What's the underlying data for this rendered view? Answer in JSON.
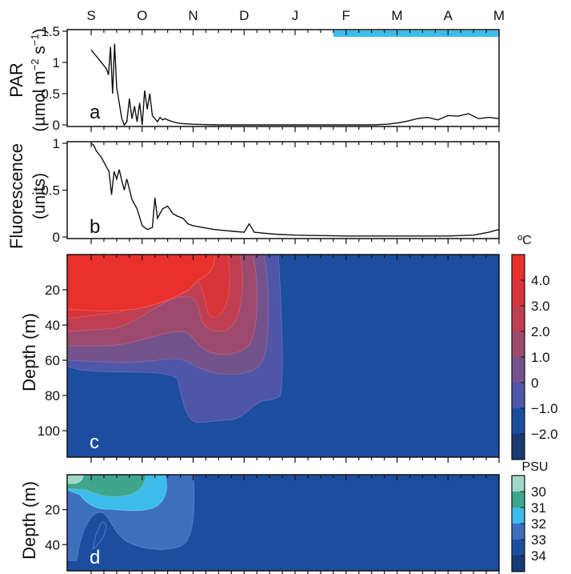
{
  "months": [
    "S",
    "O",
    "N",
    "D",
    "J",
    "F",
    "M",
    "A",
    "M"
  ],
  "panels": {
    "a": {
      "letter": "a",
      "ylabel_line1": "PAR",
      "ylabel_line2": "(µmol m",
      "ylabel_sup1": "−2",
      "ylabel_mid": " s",
      "ylabel_sup2": "−1",
      "ylabel_end": ")",
      "ticks": [
        "0",
        "0.5",
        "1",
        "1.5"
      ],
      "ylim": [
        0,
        1.5
      ]
    },
    "b": {
      "letter": "b",
      "ylabel_line1": "Fluorescence",
      "ylabel_line2": "(units)",
      "ticks": [
        "0",
        "0.5",
        "1"
      ],
      "ylim": [
        0,
        1
      ]
    },
    "c": {
      "letter": "c",
      "ylabel": "Depth (m)",
      "ticks": [
        "20",
        "40",
        "60",
        "80",
        "100"
      ],
      "colorbar_unit": "ºC",
      "colorbar_labels": [
        "4.0",
        "3.0",
        "2.0",
        "1.0",
        "0",
        "−1.0",
        "−2.0"
      ],
      "colorbar_colors": [
        "#e8302c",
        "#d8353a",
        "#c03f52",
        "#9c4a6e",
        "#74528c",
        "#4e56a8",
        "#1c4ea0",
        "#1c3a72"
      ]
    },
    "d": {
      "letter": "d",
      "ylabel": "Depth (m)",
      "ticks": [
        "20",
        "40"
      ],
      "colorbar_unit": "PSU",
      "colorbar_labels": [
        "30",
        "31",
        "32",
        "33",
        "34"
      ],
      "colorbar_colors": [
        "#9ed8c8",
        "#3fa58e",
        "#3cbcea",
        "#3e6fbf",
        "#1c4ea0",
        "#173a78"
      ]
    }
  },
  "chart_data": [
    {
      "type": "line",
      "panel": "a",
      "ylabel": "PAR (µmol m−2 s−1)",
      "x_axis": "month (S–M)",
      "ylim": [
        0,
        1.5
      ],
      "ice_bar_x": [
        4.75,
        8.0
      ],
      "x": [
        0.0,
        0.05,
        0.1,
        0.15,
        0.2,
        0.25,
        0.3,
        0.34,
        0.38,
        0.42,
        0.46,
        0.5,
        0.55,
        0.6,
        0.65,
        0.7,
        0.75,
        0.8,
        0.85,
        0.9,
        0.95,
        1.0,
        1.05,
        1.1,
        1.15,
        1.2,
        1.25,
        1.3,
        1.35,
        1.4,
        1.45,
        1.5,
        1.6,
        1.7,
        1.8,
        2.0,
        2.5,
        3.0,
        4.0,
        5.0,
        5.5,
        5.8,
        6.0,
        6.2,
        6.4,
        6.6,
        6.8,
        7.0,
        7.2,
        7.4,
        7.6,
        7.8,
        8.0
      ],
      "y": [
        1.2,
        1.15,
        1.1,
        1.05,
        1.0,
        0.95,
        0.9,
        0.8,
        1.25,
        0.5,
        1.3,
        0.6,
        0.35,
        0.1,
        0.0,
        0.05,
        0.42,
        0.1,
        0.3,
        0.05,
        0.35,
        0.0,
        0.55,
        0.25,
        0.5,
        0.15,
        0.1,
        0.05,
        0.12,
        0.08,
        0.1,
        0.08,
        0.05,
        0.03,
        0.02,
        0.01,
        0.0,
        0.0,
        0.0,
        0.0,
        0.0,
        0.01,
        0.03,
        0.06,
        0.1,
        0.12,
        0.08,
        0.15,
        0.14,
        0.18,
        0.1,
        0.12,
        0.1
      ]
    },
    {
      "type": "line",
      "panel": "b",
      "ylabel": "Fluorescence (units)",
      "x_axis": "month (S–M)",
      "ylim": [
        0,
        1
      ],
      "x": [
        0.0,
        0.05,
        0.1,
        0.2,
        0.3,
        0.35,
        0.4,
        0.45,
        0.5,
        0.55,
        0.6,
        0.65,
        0.7,
        0.8,
        0.9,
        1.0,
        1.1,
        1.2,
        1.25,
        1.3,
        1.4,
        1.5,
        1.6,
        1.7,
        1.8,
        1.9,
        2.0,
        2.2,
        2.4,
        2.6,
        2.8,
        3.0,
        3.1,
        3.2,
        3.4,
        3.6,
        4.0,
        5.0,
        6.0,
        7.0,
        7.5,
        7.8,
        8.0
      ],
      "y": [
        1.0,
        0.98,
        0.92,
        0.85,
        0.75,
        0.7,
        0.45,
        0.7,
        0.62,
        0.72,
        0.6,
        0.5,
        0.62,
        0.4,
        0.3,
        0.12,
        0.08,
        0.1,
        0.42,
        0.2,
        0.3,
        0.33,
        0.25,
        0.22,
        0.2,
        0.14,
        0.12,
        0.1,
        0.08,
        0.07,
        0.06,
        0.05,
        0.14,
        0.05,
        0.04,
        0.03,
        0.02,
        0.01,
        0.01,
        0.01,
        0.02,
        0.05,
        0.08
      ]
    },
    {
      "type": "heatmap",
      "panel": "c",
      "quantity": "temperature (ºC)",
      "ylabel": "Depth (m)",
      "ylim": [
        0,
        115
      ],
      "note": "warm water (≈4 ºC) in upper 30 m Sep–Oct, deepening to ~100 m by mid-Dec, then −1.5 to −2 ºC throughout Jan–May"
    },
    {
      "type": "heatmap",
      "panel": "d",
      "quantity": "salinity (PSU)",
      "ylabel": "Depth (m)",
      "ylim": [
        0,
        55
      ],
      "note": "fresher water (30–32 PSU) near surface Sep–Oct; ~33 PSU elsewhere"
    }
  ]
}
